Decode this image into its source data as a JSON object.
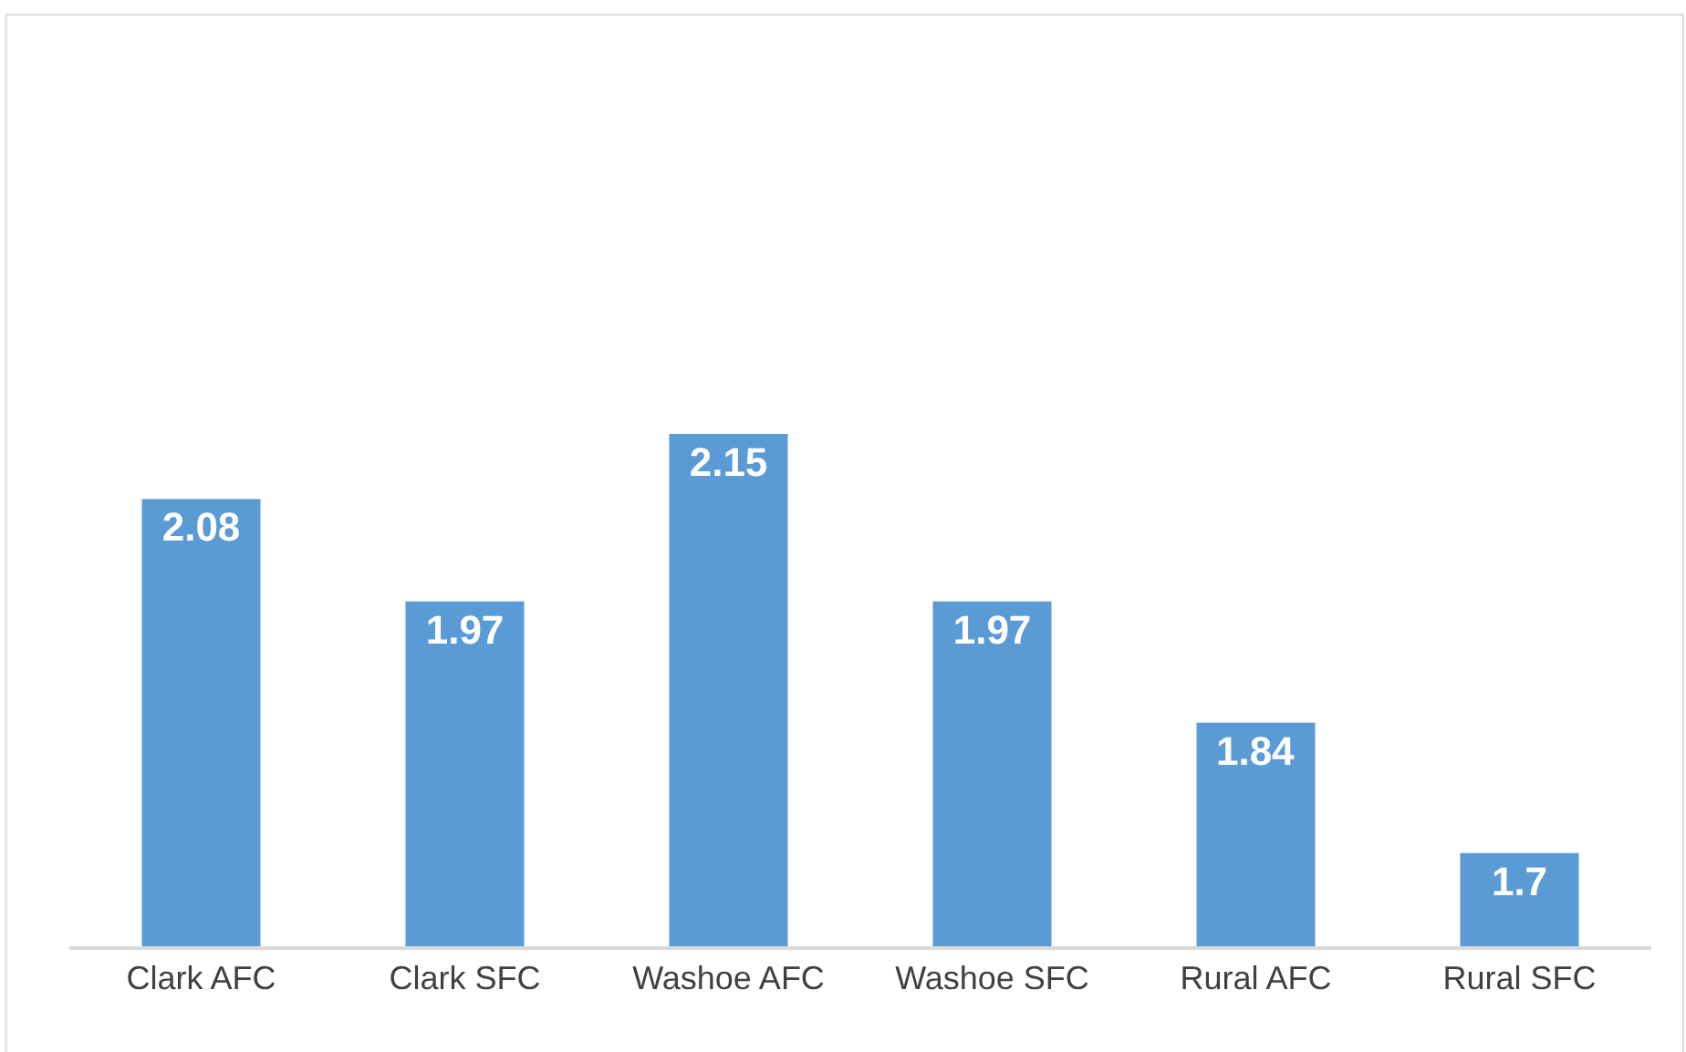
{
  "chart_data": {
    "type": "bar",
    "categories": [
      "Clark AFC",
      "Clark SFC",
      "Washoe AFC",
      "Washoe SFC",
      "Rural AFC",
      "Rural SFC"
    ],
    "values": [
      2.08,
      1.97,
      2.15,
      1.97,
      1.84,
      1.7
    ],
    "color": "#5b9bd5",
    "ylim": [
      1.6,
      2.6
    ],
    "data_labels": true,
    "tick_labels": "x"
  }
}
